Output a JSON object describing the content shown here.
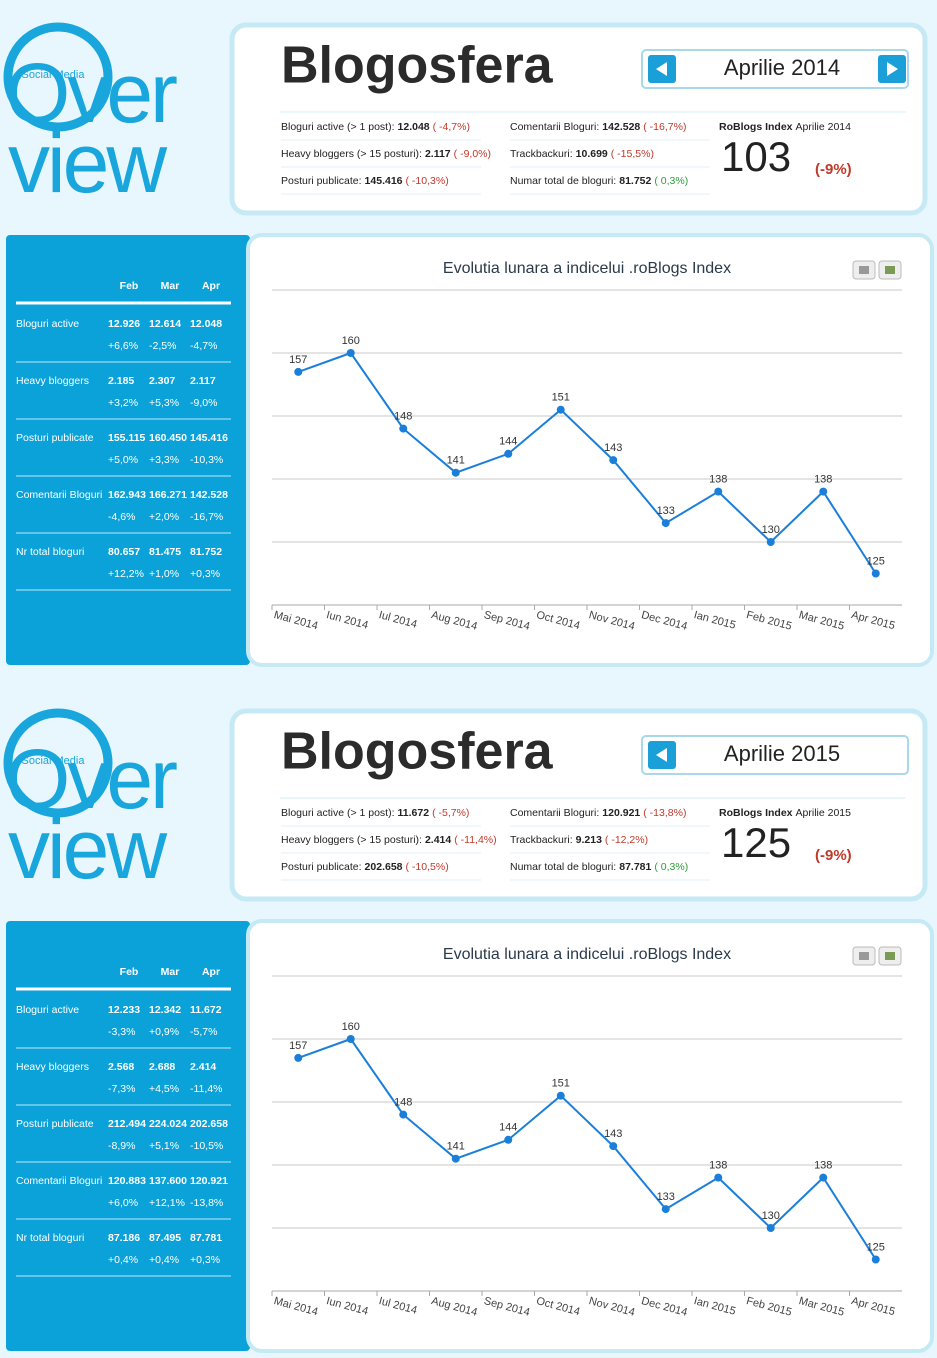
{
  "sections": [
    {
      "logo": {
        "tag": "Social Media",
        "lines": [
          "Over",
          "view"
        ]
      },
      "header": {
        "title": "Blogosfera",
        "period": "Aprilie 2014",
        "stats": [
          {
            "label": "Bloguri active (> 1 post):",
            "value": "12.048",
            "change": "( -4,7%)",
            "color": "#c0392b"
          },
          {
            "label": "Heavy bloggers (> 15 posturi):",
            "value": "2.117",
            "change": "( -9,0%)",
            "color": "#c0392b"
          },
          {
            "label": "Posturi publicate:",
            "value": "145.416",
            "change": "( -10,3%)",
            "color": "#c0392b"
          },
          {
            "label": "Comentarii Bloguri:",
            "value": "142.528",
            "change": "( -16,7%)",
            "color": "#c0392b"
          },
          {
            "label": "Trackbackuri:",
            "value": "10.699",
            "change": "( -15,5%)",
            "color": "#c0392b"
          },
          {
            "label": "Numar total de bloguri:",
            "value": "81.752",
            "change": "( 0,3%)",
            "color": "#2e9e3a"
          }
        ],
        "index": {
          "label": "RoBlogs Index",
          "period": "Aprilie 2014",
          "value": "103",
          "change": "(-9%)",
          "color": "#c0392b"
        }
      },
      "table": {
        "columns": [
          "Feb",
          "Mar",
          "Apr"
        ],
        "rows": [
          {
            "name": "Bloguri active",
            "values": [
              "12.926",
              "12.614",
              "12.048"
            ],
            "changes": [
              "+6,6%",
              "-2,5%",
              "-4,7%"
            ]
          },
          {
            "name": "Heavy bloggers",
            "values": [
              "2.185",
              "2.307",
              "2.117"
            ],
            "changes": [
              "+3,2%",
              "+5,3%",
              "-9,0%"
            ]
          },
          {
            "name": "Posturi publicate",
            "values": [
              "155.115",
              "160.450",
              "145.416"
            ],
            "changes": [
              "+5,0%",
              "+3,3%",
              "-10,3%"
            ]
          },
          {
            "name": "Comentarii Bloguri",
            "values": [
              "162.943",
              "166.271",
              "142.528"
            ],
            "changes": [
              "-4,6%",
              "+2,0%",
              "-16,7%"
            ]
          },
          {
            "name": "Nr total bloguri",
            "values": [
              "80.657",
              "81.475",
              "81.752"
            ],
            "changes": [
              "+12,2%",
              "+1,0%",
              "+0,3%"
            ]
          }
        ]
      },
      "chart_data": {
        "type": "line",
        "title": "Evolutia lunara a indicelui .roBlogs Index",
        "categories": [
          "Mai 2014",
          "Iun 2014",
          "Iul 2014",
          "Aug 2014",
          "Sep 2014",
          "Oct 2014",
          "Nov 2014",
          "Dec 2014",
          "Ian 2015",
          "Feb 2015",
          "Mar 2015",
          "Apr 2015"
        ],
        "values": [
          157,
          160,
          148,
          141,
          144,
          151,
          143,
          133,
          138,
          130,
          138,
          125
        ],
        "color": "#1b7fd9",
        "ylim": [
          120,
          170
        ],
        "yticks": [
          120,
          130,
          140,
          150,
          160,
          170
        ],
        "grid": true
      }
    },
    {
      "logo": {
        "tag": "Social Media",
        "lines": [
          "Over",
          "view"
        ]
      },
      "header": {
        "title": "Blogosfera",
        "period": "Aprilie 2015",
        "stats": [
          {
            "label": "Bloguri active (> 1 post):",
            "value": "11.672",
            "change": "( -5,7%)",
            "color": "#c0392b"
          },
          {
            "label": "Heavy bloggers (> 15 posturi):",
            "value": "2.414",
            "change": "( -11,4%)",
            "color": "#c0392b"
          },
          {
            "label": "Posturi publicate:",
            "value": "202.658",
            "change": "( -10,5%)",
            "color": "#c0392b"
          },
          {
            "label": "Comentarii Bloguri:",
            "value": "120.921",
            "change": "( -13,8%)",
            "color": "#c0392b"
          },
          {
            "label": "Trackbackuri:",
            "value": "9.213",
            "change": "( -12,2%)",
            "color": "#c0392b"
          },
          {
            "label": "Numar total de bloguri:",
            "value": "87.781",
            "change": "( 0,3%)",
            "color": "#2e9e3a"
          }
        ],
        "index": {
          "label": "RoBlogs Index",
          "period": "Aprilie 2015",
          "value": "125",
          "change": "(-9%)",
          "color": "#c0392b"
        }
      },
      "table": {
        "columns": [
          "Feb",
          "Mar",
          "Apr"
        ],
        "rows": [
          {
            "name": "Bloguri active",
            "values": [
              "12.233",
              "12.342",
              "11.672"
            ],
            "changes": [
              "-3,3%",
              "+0,9%",
              "-5,7%"
            ]
          },
          {
            "name": "Heavy bloggers",
            "values": [
              "2.568",
              "2.688",
              "2.414"
            ],
            "changes": [
              "-7,3%",
              "+4,5%",
              "-11,4%"
            ]
          },
          {
            "name": "Posturi publicate",
            "values": [
              "212.494",
              "224.024",
              "202.658"
            ],
            "changes": [
              "-8,9%",
              "+5,1%",
              "-10,5%"
            ]
          },
          {
            "name": "Comentarii Bloguri",
            "values": [
              "120.883",
              "137.600",
              "120.921"
            ],
            "changes": [
              "+6,0%",
              "+12,1%",
              "-13,8%"
            ]
          },
          {
            "name": "Nr total bloguri",
            "values": [
              "87.186",
              "87.495",
              "87.781"
            ],
            "changes": [
              "+0,4%",
              "+0,4%",
              "+0,3%"
            ]
          }
        ]
      },
      "chart_data": {
        "type": "line",
        "title": "Evolutia lunara a indicelui .roBlogs Index",
        "categories": [
          "Mai 2014",
          "Iun 2014",
          "Iul 2014",
          "Aug 2014",
          "Sep 2014",
          "Oct 2014",
          "Nov 2014",
          "Dec 2014",
          "Ian 2015",
          "Feb 2015",
          "Mar 2015",
          "Apr 2015"
        ],
        "values": [
          157,
          160,
          148,
          141,
          144,
          151,
          143,
          133,
          138,
          130,
          138,
          125
        ],
        "color": "#1b7fd9",
        "ylim": [
          120,
          170
        ],
        "yticks": [
          120,
          130,
          140,
          150,
          160,
          170
        ],
        "grid": true
      }
    }
  ]
}
